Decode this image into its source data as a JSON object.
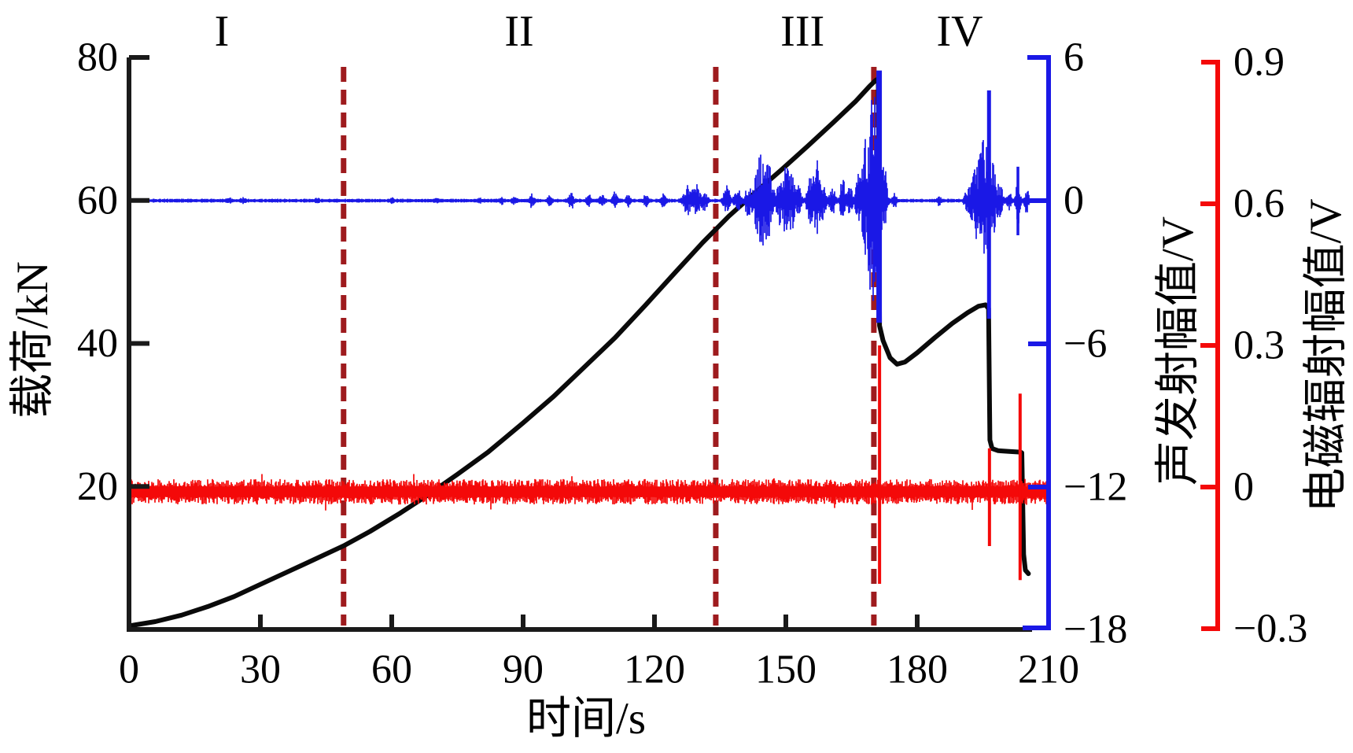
{
  "colors": {
    "load": "#0a0a0a",
    "ae": "#1a18e6",
    "emr": "#f40909",
    "boundary": "#9e1b1e",
    "axis_black": "#1a1a1a",
    "text": "#000000"
  },
  "chart_data": {
    "type": "line",
    "title": "",
    "x_axis": {
      "label": "时间/s",
      "min": 0,
      "max": 210,
      "ticks": [
        {
          "v": 0,
          "label": "0"
        },
        {
          "v": 30,
          "label": "30"
        },
        {
          "v": 60,
          "label": "60"
        },
        {
          "v": 90,
          "label": "90"
        },
        {
          "v": 120,
          "label": "120"
        },
        {
          "v": 150,
          "label": "150"
        },
        {
          "v": 180,
          "label": "180"
        },
        {
          "v": 210,
          "label": "210"
        }
      ]
    },
    "left_axis": {
      "label": "载荷/kN",
      "min": 0,
      "max": 80,
      "ticks": [
        {
          "v": 80,
          "label": "80"
        },
        {
          "v": 60,
          "label": "60"
        },
        {
          "v": 40,
          "label": "40"
        },
        {
          "v": 20,
          "label": "20"
        }
      ]
    },
    "blue_axis": {
      "label": "声发射幅值/V",
      "min": -18,
      "max": 6,
      "ticks": [
        {
          "v": 6,
          "label": "6"
        },
        {
          "v": 0,
          "label": "0"
        },
        {
          "v": -6,
          "label": "−6"
        },
        {
          "v": -12,
          "label": "−12"
        },
        {
          "v": -18,
          "label": "−18"
        }
      ]
    },
    "red_axis": {
      "label": "电磁辐射幅值/V",
      "min": -0.3,
      "max": 0.9,
      "ticks": [
        {
          "v": 0.9,
          "label": "0.9"
        },
        {
          "v": 0.6,
          "label": "0.6"
        },
        {
          "v": 0.3,
          "label": "0.3"
        },
        {
          "v": 0,
          "label": "0"
        },
        {
          "v": -0.3,
          "label": "−0.3"
        }
      ]
    },
    "stages": [
      {
        "label": "I",
        "t": 21.2
      },
      {
        "label": "II",
        "t": 89.1
      },
      {
        "label": "III",
        "t": 153.8
      },
      {
        "label": "IV",
        "t": 189.7
      }
    ],
    "stage_boundaries_t": [
      49.0,
      134.0,
      170.1
    ],
    "series": [
      {
        "name": "载荷",
        "axis": "left",
        "unit": "kN"
      },
      {
        "name": "声发射幅值",
        "axis": "blue",
        "unit": "V"
      },
      {
        "name": "电磁辐射幅值",
        "axis": "red",
        "unit": "V"
      }
    ],
    "load_points": [
      [
        0,
        0.5
      ],
      [
        6,
        1.1
      ],
      [
        12,
        2.0
      ],
      [
        18,
        3.2
      ],
      [
        24,
        4.6
      ],
      [
        30,
        6.3
      ],
      [
        36,
        8.0
      ],
      [
        42,
        9.7
      ],
      [
        49,
        11.7
      ],
      [
        55,
        13.7
      ],
      [
        62,
        16.3
      ],
      [
        68,
        18.7
      ],
      [
        75,
        21.7
      ],
      [
        82,
        24.8
      ],
      [
        90,
        28.9
      ],
      [
        97,
        32.6
      ],
      [
        104,
        36.7
      ],
      [
        111,
        40.8
      ],
      [
        118,
        45.4
      ],
      [
        125,
        50.1
      ],
      [
        131,
        54.1
      ],
      [
        137,
        57.8
      ],
      [
        143,
        61.1
      ],
      [
        149,
        64.3
      ],
      [
        155,
        67.6
      ],
      [
        161,
        71.0
      ],
      [
        166,
        73.9
      ],
      [
        169,
        75.9
      ],
      [
        170.5,
        76.8
      ],
      [
        171.1,
        77.0
      ],
      [
        171.4,
        42.5
      ],
      [
        172.2,
        40.4
      ],
      [
        173.8,
        38.0
      ],
      [
        175.4,
        37.1
      ],
      [
        177.2,
        37.4
      ],
      [
        180,
        38.7
      ],
      [
        184,
        40.8
      ],
      [
        188,
        42.8
      ],
      [
        191.5,
        44.3
      ],
      [
        194,
        45.2
      ],
      [
        195.6,
        45.4
      ],
      [
        196.3,
        44.9
      ],
      [
        196.6,
        26.5
      ],
      [
        197.1,
        25.3
      ],
      [
        198.5,
        25.0
      ],
      [
        201,
        24.9
      ],
      [
        203.6,
        24.8
      ],
      [
        203.9,
        24.7
      ],
      [
        204.3,
        10.5
      ],
      [
        204.7,
        8.3
      ],
      [
        205.4,
        7.8
      ]
    ],
    "ae_signal": {
      "baseline_v": 0,
      "noise_amp_v": 0.045,
      "bursts_t_w_amp": [
        [
          23,
          0.4,
          0.07
        ],
        [
          26,
          0.4,
          0.07
        ],
        [
          43,
          0.4,
          0.06
        ],
        [
          60,
          0.5,
          0.06
        ],
        [
          70,
          0.5,
          0.07
        ],
        [
          80,
          0.6,
          0.08
        ],
        [
          85,
          0.8,
          0.12
        ],
        [
          88,
          0.8,
          0.15
        ],
        [
          92,
          0.8,
          0.25
        ],
        [
          96,
          0.8,
          0.18
        ],
        [
          101,
          0.9,
          0.3
        ],
        [
          105,
          0.8,
          0.2
        ],
        [
          108,
          0.8,
          0.22
        ],
        [
          111,
          0.9,
          0.28
        ],
        [
          114,
          0.8,
          0.2
        ],
        [
          118,
          0.8,
          0.2
        ],
        [
          122,
          0.9,
          0.22
        ],
        [
          127.5,
          1.4,
          0.5
        ],
        [
          129.5,
          1.4,
          0.6
        ],
        [
          131.5,
          1.0,
          0.4
        ],
        [
          136.5,
          1.2,
          0.5
        ],
        [
          139,
          1.1,
          0.42
        ],
        [
          141.5,
          1.2,
          0.65
        ],
        [
          143.6,
          1.4,
          0.95
        ],
        [
          144.8,
          1.8,
          1.25
        ],
        [
          146.2,
          1.4,
          1.0
        ],
        [
          148.6,
          1.2,
          0.78
        ],
        [
          150.2,
          1.4,
          1.25
        ],
        [
          151.6,
          1.0,
          0.95
        ],
        [
          153,
          0.9,
          0.5
        ],
        [
          155.6,
          1.2,
          1.0
        ],
        [
          157.2,
          1.2,
          1.45
        ],
        [
          158.6,
          0.9,
          0.6
        ],
        [
          160.6,
          1.0,
          0.55
        ],
        [
          163,
          1.0,
          0.9
        ],
        [
          164.6,
          0.9,
          0.6
        ],
        [
          166.6,
          1.2,
          0.85
        ],
        [
          168.2,
          1.4,
          1.5
        ],
        [
          169.6,
          1.8,
          2.1
        ],
        [
          170.7,
          2.0,
          2.6
        ],
        [
          172.6,
          1.0,
          0.85
        ],
        [
          174.8,
          0.6,
          0.3
        ],
        [
          185,
          0.6,
          0.15
        ],
        [
          191.5,
          1.0,
          0.55
        ],
        [
          193.2,
          1.4,
          1.1
        ],
        [
          194.8,
          1.5,
          1.5
        ],
        [
          196.0,
          1.6,
          1.7
        ],
        [
          197.4,
          1.4,
          1.0
        ],
        [
          199,
          1.0,
          0.5
        ],
        [
          201,
          0.8,
          0.3
        ],
        [
          203,
          0.8,
          0.9
        ],
        [
          205,
          0.6,
          0.45
        ]
      ],
      "spikes_t_hi_lo_w": [
        [
          171.3,
          5.45,
          -5.12,
          7
        ],
        [
          196.4,
          4.62,
          -4.95,
          5
        ],
        [
          203.0,
          1.42,
          -1.45,
          3.5
        ]
      ]
    },
    "emr_signal": {
      "baseline_v": 0,
      "band_amp_v": [
        0.011,
        0.027
      ],
      "spikes_t_hi_lo_w": [
        [
          171.4,
          0.3,
          -0.205,
          4
        ],
        [
          196.5,
          0.082,
          -0.125,
          4
        ],
        [
          203.5,
          0.198,
          -0.197,
          4
        ]
      ]
    }
  }
}
